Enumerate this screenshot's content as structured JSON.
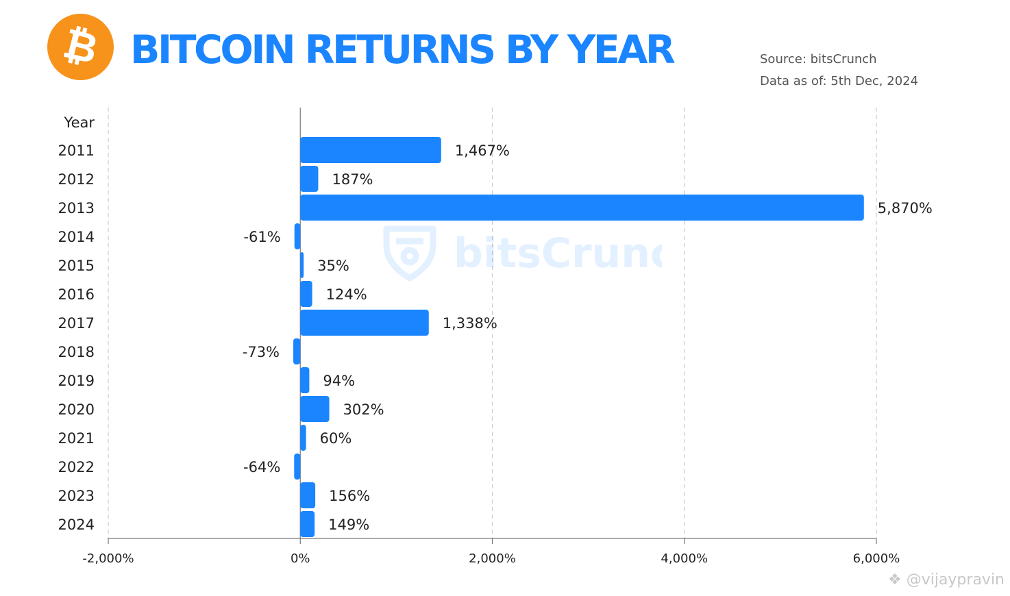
{
  "header": {
    "title": "BITCOIN RETURNS BY YEAR",
    "logo_symbol": "₿",
    "source": "Source: bitsCrunch",
    "data_as_of": "Data as of: 5th Dec, 2024"
  },
  "watermark": {
    "text": "bitsCrunch",
    "icon": "bitscrunch-shield-icon"
  },
  "credit": {
    "text": "@vijaypravin",
    "icon": "diamond-logo-icon"
  },
  "colors": {
    "bar": "#1a85ff",
    "title": "#1a85ff",
    "logo": "#f7931a",
    "grid": "#cccccc"
  },
  "chart_data": {
    "type": "bar",
    "orientation": "horizontal",
    "category_header": "Year",
    "categories": [
      "2011",
      "2012",
      "2013",
      "2014",
      "2015",
      "2016",
      "2017",
      "2018",
      "2019",
      "2020",
      "2021",
      "2022",
      "2023",
      "2024"
    ],
    "values": [
      1467,
      187,
      5870,
      -61,
      35,
      124,
      1338,
      -73,
      94,
      302,
      60,
      -64,
      156,
      149
    ],
    "value_labels": [
      "1,467%",
      "187%",
      "5,870%",
      "-61%",
      "35%",
      "124%",
      "1,338%",
      "-73%",
      "94%",
      "302%",
      "60%",
      "-64%",
      "156%",
      "149%"
    ],
    "xlim": [
      -2000,
      6000
    ],
    "xticks": [
      -2000,
      0,
      2000,
      4000,
      6000
    ],
    "xtick_labels": [
      "-2,000%",
      "0%",
      "2,000%",
      "4,000%",
      "6,000%"
    ],
    "grid": "vertical dashed",
    "title": "BITCOIN RETURNS BY YEAR"
  }
}
